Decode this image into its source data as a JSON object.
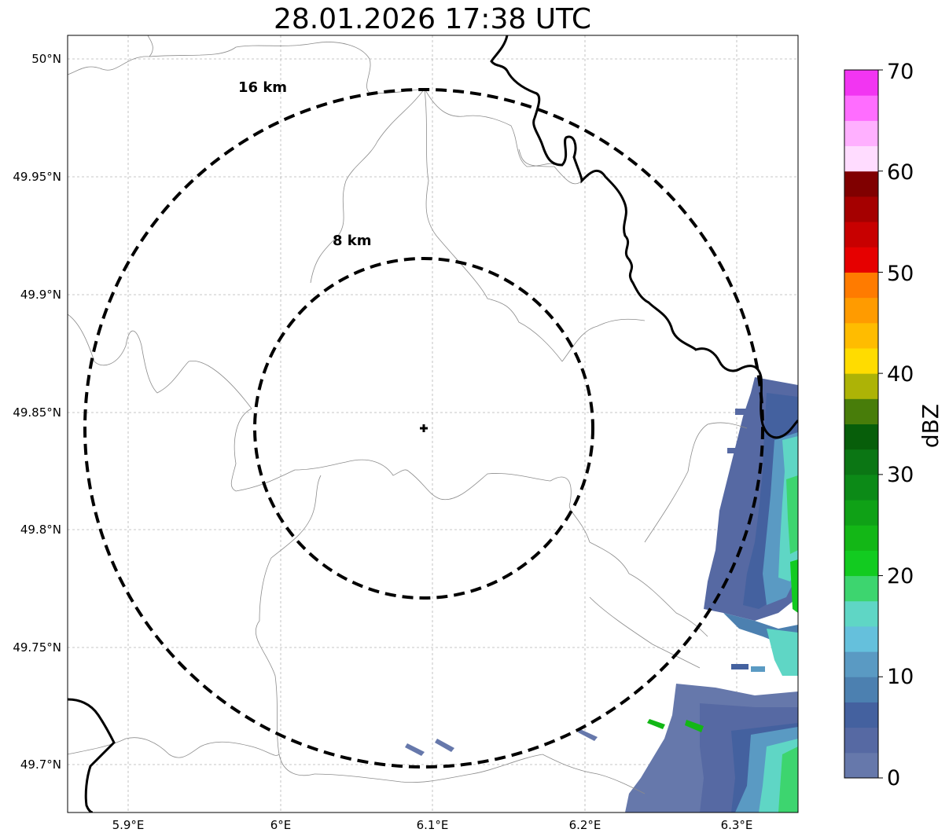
{
  "title": "28.01.2026 17:38 UTC",
  "map": {
    "lon_ticks": [
      "5.9°E",
      "6°E",
      "6.1°E",
      "6.2°E",
      "6.3°E"
    ],
    "lat_ticks": [
      "50°N",
      "49.95°N",
      "49.9°N",
      "49.85°N",
      "49.8°N",
      "49.75°N",
      "49.7°N"
    ],
    "radar_site": {
      "lon": 6.095,
      "lat": 49.843
    },
    "rings": [
      {
        "label": "8 km",
        "radius_km": 8
      },
      {
        "label": "16 km",
        "radius_km": 16
      }
    ],
    "gridlines": true
  },
  "colorbar": {
    "label": "dBZ",
    "ticks": [
      "0",
      "10",
      "20",
      "30",
      "40",
      "50",
      "60",
      "70"
    ],
    "range": [
      0,
      70
    ],
    "step": 2.5,
    "colors": [
      "#6678ab",
      "#5669a3",
      "#44619f",
      "#4c80b0",
      "#5a9ac3",
      "#65c0dc",
      "#5fd6c5",
      "#3dd56f",
      "#12cb20",
      "#13b716",
      "#0fa116",
      "#0c8a17",
      "#0b7614",
      "#075e0a",
      "#487d0a",
      "#adb306",
      "#ffdc00",
      "#ffbc00",
      "#ff9b00",
      "#ff7b00",
      "#e60000",
      "#c80000",
      "#a50000",
      "#800000",
      "#ffdcff",
      "#ffb0ff",
      "#ff6dff",
      "#f235f2"
    ]
  }
}
